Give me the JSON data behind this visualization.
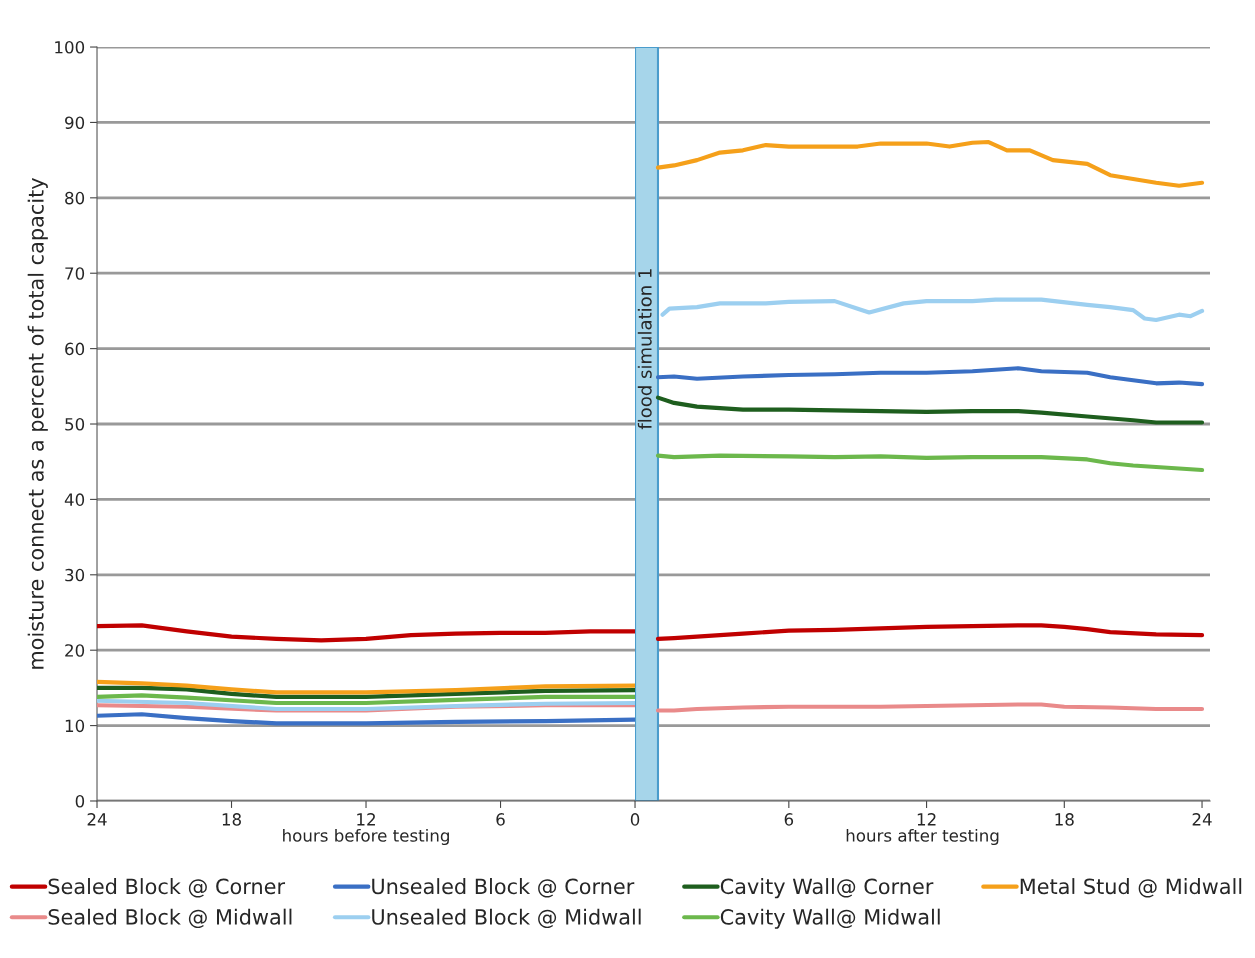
{
  "chart_data": [
    {
      "type": "line",
      "ylabel": "moisture connect as a percent of total capacity",
      "xlabel": "hours before testing",
      "xlim": [
        24,
        0
      ],
      "xticks": [
        24,
        18,
        12,
        6,
        0
      ],
      "ylim": [
        0,
        100
      ],
      "yticks": [
        0,
        10,
        20,
        30,
        40,
        50,
        60,
        70,
        80,
        90,
        100
      ],
      "grid": "y",
      "legend": "bottom",
      "marker": "none",
      "line_style": "solid",
      "series": [
        {
          "name": "Sealed Block @ Corner",
          "color": "#c00000",
          "x": [
            24,
            22,
            20,
            18,
            16,
            14,
            12,
            10,
            8,
            6,
            4,
            2,
            0
          ],
          "values": [
            23.2,
            23.3,
            22.5,
            21.8,
            21.5,
            21.3,
            21.5,
            22.0,
            22.2,
            22.3,
            22.3,
            22.5,
            22.5
          ]
        },
        {
          "name": "Unsealed Block @ Corner",
          "color": "#3a6fc4",
          "x": [
            24,
            22,
            20,
            18,
            16,
            12,
            8,
            4,
            0
          ],
          "values": [
            11.3,
            11.5,
            11.0,
            10.6,
            10.3,
            10.3,
            10.5,
            10.6,
            10.8
          ]
        },
        {
          "name": "Cavity Wall@ Corner",
          "color": "#1e5e1e",
          "x": [
            24,
            22,
            20,
            18,
            16,
            12,
            8,
            4,
            0
          ],
          "values": [
            15.0,
            15.0,
            14.8,
            14.2,
            13.8,
            13.8,
            14.2,
            14.6,
            14.7
          ]
        },
        {
          "name": "Metal Stud @ Midwall",
          "color": "#f5a01a",
          "x": [
            24,
            22,
            20,
            18,
            16,
            12,
            8,
            4,
            0
          ],
          "values": [
            15.8,
            15.6,
            15.3,
            14.8,
            14.4,
            14.4,
            14.7,
            15.2,
            15.3
          ]
        },
        {
          "name": "Sealed Block @ Midwall",
          "color": "#e98a8a",
          "x": [
            24,
            20,
            16,
            12,
            8,
            4,
            0
          ],
          "values": [
            12.7,
            12.5,
            12.0,
            12.0,
            12.5,
            12.7,
            12.7
          ]
        },
        {
          "name": "Unsealed Block @ Midwall",
          "color": "#9ccff0",
          "x": [
            24,
            20,
            16,
            12,
            8,
            4,
            0
          ],
          "values": [
            13.3,
            13.0,
            12.2,
            12.2,
            12.6,
            12.9,
            13.0
          ]
        },
        {
          "name": "Cavity Wall@ Midwall",
          "color": "#6cb84c",
          "x": [
            24,
            22,
            20,
            16,
            12,
            8,
            4,
            0
          ],
          "values": [
            13.8,
            14.0,
            13.7,
            13.0,
            13.0,
            13.4,
            13.8,
            13.8
          ]
        }
      ]
    },
    {
      "type": "line",
      "xlabel": "hours after testing",
      "xlim": [
        -0.7,
        24.35
      ],
      "xticks": [
        6,
        12,
        18,
        24
      ],
      "ylim": [
        0,
        100
      ],
      "yticks": [
        0,
        10,
        20,
        30,
        40,
        50,
        60,
        70,
        80,
        90,
        100
      ],
      "grid": "y",
      "tick_labels": "x",
      "marker": "none",
      "line_style": "solid",
      "bands": [
        {
          "axis": "x",
          "from": -0.7,
          "to": 0.3,
          "label": "flood simulation 1",
          "color": "#a6d5ea"
        }
      ],
      "series": [
        {
          "color": "#c00000",
          "x": [
            0.3,
            1,
            2,
            3,
            4,
            5,
            6,
            8,
            10,
            12,
            14,
            16,
            17,
            18,
            19,
            20,
            22,
            24
          ],
          "values": [
            21.5,
            21.6,
            21.8,
            22.0,
            22.2,
            22.4,
            22.6,
            22.7,
            22.9,
            23.1,
            23.2,
            23.3,
            23.3,
            23.1,
            22.8,
            22.4,
            22.1,
            22.0
          ]
        },
        {
          "color": "#3a6fc4",
          "x": [
            0.3,
            1,
            2,
            4,
            6,
            8,
            10,
            12,
            14,
            16,
            17,
            19,
            20,
            21,
            22,
            23,
            24
          ],
          "values": [
            56.2,
            56.3,
            56.0,
            56.3,
            56.5,
            56.6,
            56.8,
            56.8,
            57.0,
            57.4,
            57.0,
            56.8,
            56.2,
            55.8,
            55.4,
            55.5,
            55.3
          ]
        },
        {
          "color": "#1e5e1e",
          "x": [
            0.3,
            1,
            2,
            3,
            4,
            6,
            8,
            10,
            12,
            14,
            16,
            17,
            19,
            21,
            22,
            24
          ],
          "values": [
            53.5,
            52.8,
            52.3,
            52.1,
            51.9,
            51.9,
            51.8,
            51.7,
            51.6,
            51.7,
            51.7,
            51.5,
            51.0,
            50.5,
            50.2,
            50.2
          ]
        },
        {
          "color": "#f5a01a",
          "x": [
            0.3,
            1,
            2,
            3,
            4,
            5,
            6,
            9,
            10,
            12,
            13,
            14,
            14.7,
            15.5,
            16.5,
            17.5,
            19,
            20,
            21,
            22,
            23,
            24
          ],
          "values": [
            84.0,
            84.3,
            85.0,
            86.0,
            86.3,
            87.0,
            86.8,
            86.8,
            87.2,
            87.2,
            86.8,
            87.3,
            87.4,
            86.3,
            86.3,
            85.0,
            84.5,
            83.0,
            82.5,
            82.0,
            81.6,
            82.0
          ]
        },
        {
          "color": "#e98a8a",
          "x": [
            0.3,
            1,
            2,
            4,
            6,
            10,
            14,
            16,
            17,
            18,
            20,
            22,
            24
          ],
          "values": [
            12.0,
            12.0,
            12.2,
            12.4,
            12.5,
            12.5,
            12.7,
            12.8,
            12.8,
            12.5,
            12.4,
            12.2,
            12.2
          ]
        },
        {
          "color": "#9ccff0",
          "x": [
            0.5,
            0.8,
            2,
            3,
            5,
            6,
            8,
            9,
            9.5,
            11,
            12,
            14,
            15,
            17,
            19,
            20,
            21,
            21.5,
            22,
            23,
            23.5,
            24
          ],
          "values": [
            64.5,
            65.3,
            65.5,
            66.0,
            66.0,
            66.2,
            66.3,
            65.3,
            64.8,
            66.0,
            66.3,
            66.3,
            66.5,
            66.5,
            65.8,
            65.5,
            65.1,
            64.0,
            63.8,
            64.5,
            64.3,
            65.0
          ]
        },
        {
          "color": "#6cb84c",
          "x": [
            0.3,
            1,
            3,
            6,
            8,
            10,
            12,
            14,
            17,
            19,
            20,
            21,
            22,
            24
          ],
          "values": [
            45.8,
            45.6,
            45.8,
            45.7,
            45.6,
            45.7,
            45.5,
            45.6,
            45.6,
            45.3,
            44.8,
            44.5,
            44.3,
            43.9
          ]
        }
      ]
    }
  ]
}
